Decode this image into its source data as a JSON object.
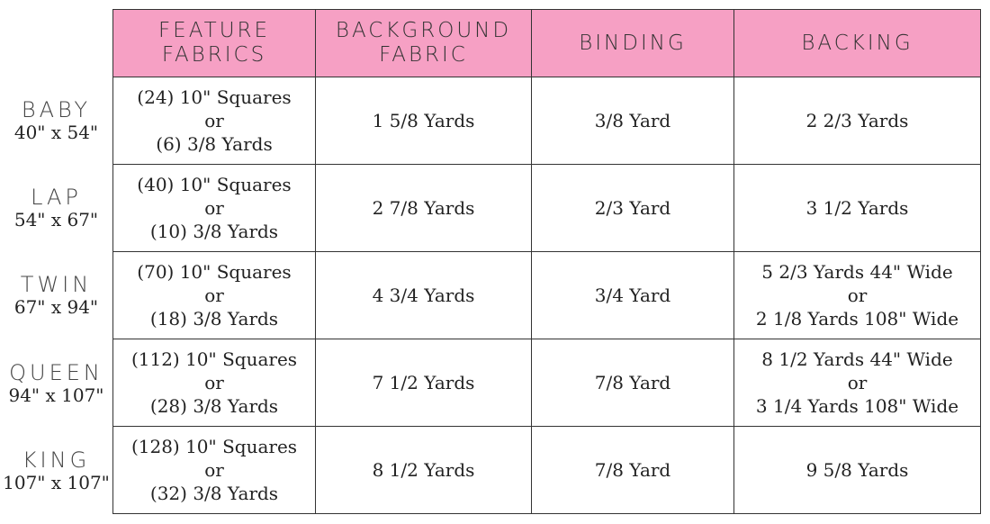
{
  "headers": [
    "FEATURE FABRICS",
    "BACKGROUND FABRIC",
    "BINDING",
    "BACKING"
  ],
  "header_lines": [
    [
      "FEATURE",
      "FABRICS"
    ],
    [
      "BACKGROUND",
      "FABRIC"
    ],
    [
      "BINDING"
    ],
    [
      "BACKING"
    ]
  ],
  "header_color": "#f6a0c4",
  "rows": [
    {
      "name": "BABY",
      "size": "40\" x 54\"",
      "feature": [
        "(24) 10\" Squares",
        "or",
        "(6) 3/8 Yards"
      ],
      "background": "1  5/8 Yards",
      "binding": "3/8 Yard",
      "backing": [
        "2 2/3 Yards"
      ]
    },
    {
      "name": "LAP",
      "size": "54\" x 67\"",
      "feature": [
        "(40) 10\" Squares",
        "or",
        "(10) 3/8 Yards"
      ],
      "background": "2 7/8 Yards",
      "binding": "2/3 Yard",
      "backing": [
        "3 1/2 Yards"
      ]
    },
    {
      "name": "TWIN",
      "size": "67\" x 94\"",
      "feature": [
        "(70) 10\" Squares",
        "or",
        "(18) 3/8 Yards"
      ],
      "background": "4 3/4 Yards",
      "binding": "3/4 Yard",
      "backing": [
        "5 2/3 Yards 44\" Wide",
        "or",
        "2 1/8 Yards 108\" Wide"
      ]
    },
    {
      "name": "QUEEN",
      "size": "94\" x 107\"",
      "feature": [
        "(112) 10\" Squares",
        "or",
        "(28) 3/8 Yards"
      ],
      "background": "7 1/2 Yards",
      "binding": "7/8 Yard",
      "backing": [
        "8 1/2 Yards 44\" Wide",
        "or",
        "3 1/4 Yards 108\" Wide"
      ]
    },
    {
      "name": "KING",
      "size": "107\" x 107\"",
      "feature": [
        "(128) 10\" Squares",
        "or",
        "(32) 3/8 Yards"
      ],
      "background": "8 1/2 Yards",
      "binding": "7/8 Yard",
      "backing": [
        "9 5/8 Yards"
      ]
    }
  ]
}
